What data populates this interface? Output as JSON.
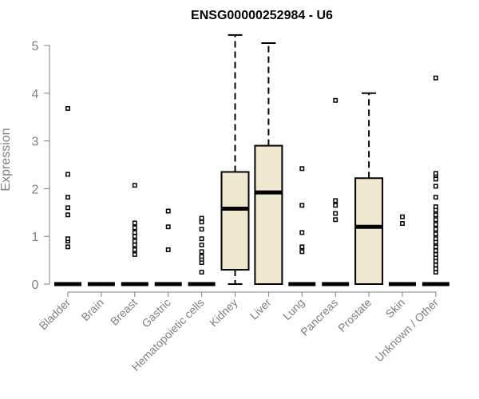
{
  "chart_data": {
    "type": "box",
    "title": "ENSG00000252984 - U6",
    "xlabel": "",
    "ylabel": "Expression",
    "ylim": [
      0,
      5
    ],
    "yticks": [
      "0",
      "1",
      "2",
      "3",
      "4",
      "5"
    ],
    "colors": {
      "box_fill": "#efe8cf",
      "line": "#000000",
      "axis": "#808080"
    },
    "categories": [
      "Bladder",
      "Brain",
      "Breast",
      "Gastric",
      "Hematopoietic cells",
      "Kidney",
      "Liver",
      "Lung",
      "Pancreas",
      "Prostate",
      "Skin",
      "Unknown / Other"
    ],
    "boxes": [
      {
        "category": "Bladder",
        "q1": 0,
        "median": 0,
        "q3": 0,
        "whisker_low": 0,
        "whisker_high": 0,
        "outliers": [
          0.78,
          0.9,
          0.95,
          1.45,
          1.6,
          1.82,
          2.3,
          3.68
        ]
      },
      {
        "category": "Brain",
        "q1": 0,
        "median": 0,
        "q3": 0,
        "whisker_low": 0,
        "whisker_high": 0,
        "outliers": []
      },
      {
        "category": "Breast",
        "q1": 0,
        "median": 0,
        "q3": 0,
        "whisker_low": 0,
        "whisker_high": 0,
        "outliers": [
          0.62,
          0.72,
          0.82,
          0.9,
          1.0,
          1.08,
          1.18,
          1.28,
          2.07
        ]
      },
      {
        "category": "Gastric",
        "q1": 0,
        "median": 0,
        "q3": 0,
        "whisker_low": 0,
        "whisker_high": 0,
        "outliers": [
          0.72,
          1.2,
          1.53
        ]
      },
      {
        "category": "Hematopoietic cells",
        "q1": 0,
        "median": 0,
        "q3": 0,
        "whisker_low": 0,
        "whisker_high": 0,
        "outliers": [
          0.25,
          0.45,
          0.52,
          0.58,
          0.68,
          0.82,
          0.95,
          1.15,
          1.3,
          1.38
        ]
      },
      {
        "category": "Kidney",
        "q1": 0.3,
        "median": 1.58,
        "q3": 2.35,
        "whisker_low": 0,
        "whisker_high": 5.22,
        "outliers": []
      },
      {
        "category": "Liver",
        "q1": 0,
        "median": 1.92,
        "q3": 2.9,
        "whisker_low": 0,
        "whisker_high": 5.05,
        "outliers": []
      },
      {
        "category": "Lung",
        "q1": 0,
        "median": 0,
        "q3": 0,
        "whisker_low": 0,
        "whisker_high": 0,
        "outliers": [
          0.68,
          0.78,
          1.08,
          1.65,
          2.42
        ]
      },
      {
        "category": "Pancreas",
        "q1": 0,
        "median": 0,
        "q3": 0,
        "whisker_low": 0,
        "whisker_high": 0,
        "outliers": [
          1.35,
          1.48,
          1.65,
          1.75,
          3.85
        ]
      },
      {
        "category": "Prostate",
        "q1": 0,
        "median": 1.2,
        "q3": 2.22,
        "whisker_low": 0,
        "whisker_high": 4.0,
        "outliers": []
      },
      {
        "category": "Skin",
        "q1": 0,
        "median": 0,
        "q3": 0,
        "whisker_low": 0,
        "whisker_high": 0,
        "outliers": [
          1.27,
          1.41
        ]
      },
      {
        "category": "Unknown / Other",
        "q1": 0,
        "median": 0,
        "q3": 0,
        "whisker_low": 0,
        "whisker_high": 0,
        "outliers": [
          0.25,
          0.32,
          0.4,
          0.48,
          0.55,
          0.62,
          0.7,
          0.78,
          0.88,
          0.95,
          1.05,
          1.15,
          1.25,
          1.35,
          1.45,
          1.55,
          1.62,
          1.82,
          2.05,
          2.2,
          2.28,
          2.32,
          4.32
        ]
      }
    ]
  }
}
